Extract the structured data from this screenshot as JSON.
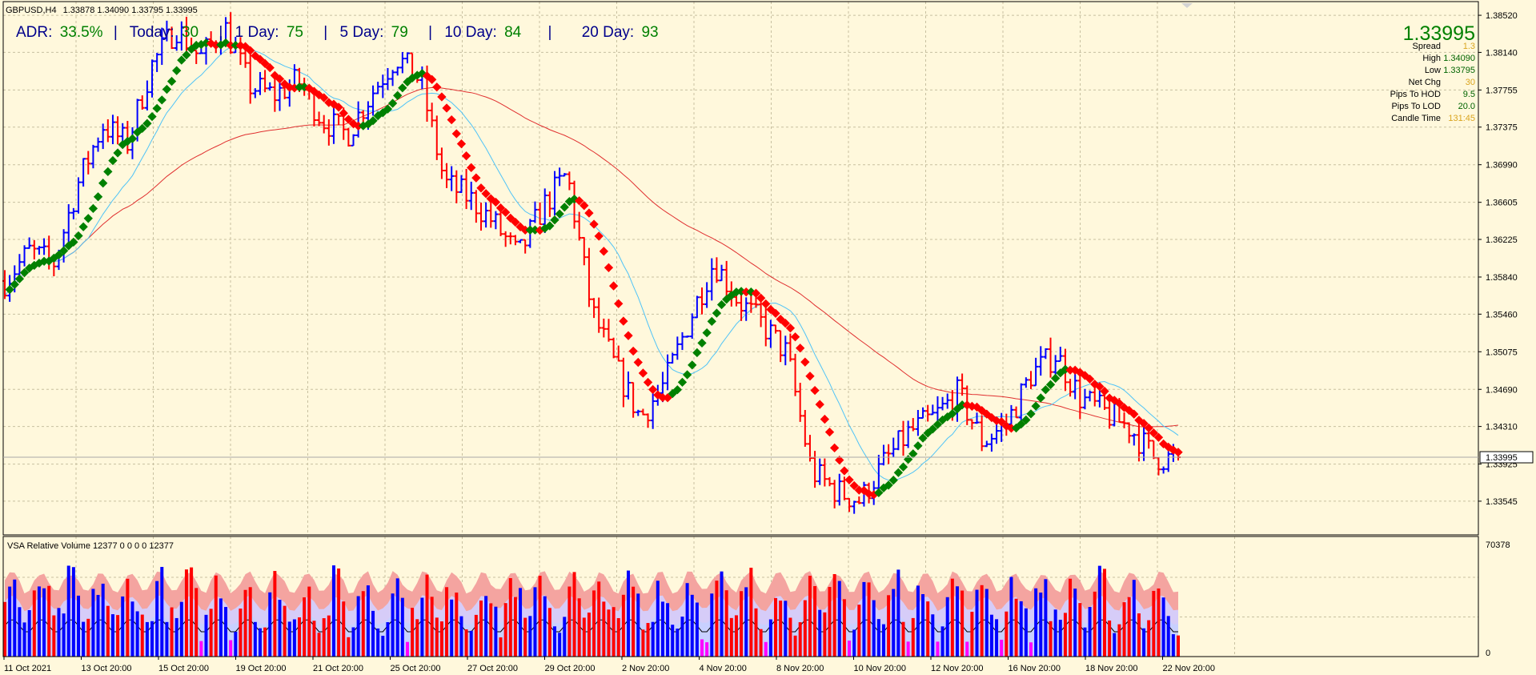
{
  "header": {
    "symbol": "GBPUSD,H4",
    "ohlc": "1.33878 1.34090 1.33795 1.33995"
  },
  "adr_bar": {
    "adr_label": "ADR:",
    "adr_value": "33.5%",
    "today_label": "Today:",
    "today_value": "30",
    "day1_label": "1 Day:",
    "day1_value": "75",
    "day5_label": "5 Day:",
    "day5_value": "79",
    "day10_label": "10 Day:",
    "day10_value": "84",
    "day20_label": "20 Day:",
    "day20_value": "93",
    "sep": "|"
  },
  "info_panel": {
    "price": "1.33995",
    "rows": [
      {
        "label": "Spread",
        "value": "1.3",
        "color": "#DAA520"
      },
      {
        "label": "High",
        "value": "1.34090",
        "color": "#006400"
      },
      {
        "label": "Low",
        "value": "1.33795",
        "color": "#006400"
      },
      {
        "label": "Net Chg",
        "value": "30",
        "color": "#DAA520"
      },
      {
        "label": "Pips To HOD",
        "value": "9.5",
        "color": "#006400"
      },
      {
        "label": "Pips To LOD",
        "value": "20.0",
        "color": "#006400"
      },
      {
        "label": "Candle Time",
        "value": "131:45",
        "color": "#DAA520"
      }
    ]
  },
  "volume_panel": {
    "title": "VSA Relative Volume 12377 0 0 0 0 12377",
    "ymax_label": "70378",
    "ymin_label": "0"
  },
  "colors": {
    "background": "#FFF8DC",
    "bull": "#0000FF",
    "bear": "#FF0000",
    "trend_up": "#008000",
    "trend_down": "#FF0000",
    "ma_fast": "#4FC3F7",
    "ma_slow": "#E03030",
    "grid": "#C8C0A0"
  },
  "chart_data": {
    "type": "bar",
    "title": "GBPUSD,H4",
    "timeframe": "H4",
    "price_axis": {
      "range": [
        1.332,
        1.3866
      ],
      "ticks": [
        "1.38520",
        "1.38140",
        "1.37755",
        "1.37375",
        "1.36990",
        "1.36605",
        "1.36225",
        "1.35840",
        "1.35460",
        "1.35075",
        "1.34690",
        "1.34310",
        "1.33925",
        "1.33545"
      ],
      "current_price": "1.33995"
    },
    "time_axis": {
      "labels": [
        "11 Oct 2021",
        "13 Oct 20:00",
        "15 Oct 20:00",
        "19 Oct 20:00",
        "21 Oct 20:00",
        "25 Oct 20:00",
        "27 Oct 20:00",
        "29 Oct 20:00",
        "2 Nov 20:00",
        "4 Nov 20:00",
        "8 Nov 20:00",
        "10 Nov 20:00",
        "12 Nov 20:00",
        "16 Nov 20:00",
        "18 Nov 20:00",
        "22 Nov 20:00"
      ]
    },
    "price_anchors": [
      1.358,
      1.361,
      1.3598,
      1.368,
      1.374,
      1.372,
      1.38,
      1.384,
      1.3808,
      1.384,
      1.378,
      1.377,
      1.3785,
      1.3745,
      1.373,
      1.3772,
      1.381,
      1.3785,
      1.368,
      1.3665,
      1.364,
      1.3605,
      1.3655,
      1.369,
      1.355,
      1.349,
      1.344,
      1.3475,
      1.354,
      1.36,
      1.356,
      1.3535,
      1.3505,
      1.3385,
      1.3365,
      1.3355,
      1.3395,
      1.3425,
      1.344,
      1.3465,
      1.3415,
      1.3435,
      1.3485,
      1.3505,
      1.346,
      1.3445,
      1.343,
      1.34,
      1.3397
    ],
    "volume": {
      "range": [
        0,
        70378
      ],
      "current": 12377
    },
    "indicators": [
      "trend dots (green up / red down)",
      "fast moving average (light blue)",
      "slow moving average (red)"
    ]
  }
}
